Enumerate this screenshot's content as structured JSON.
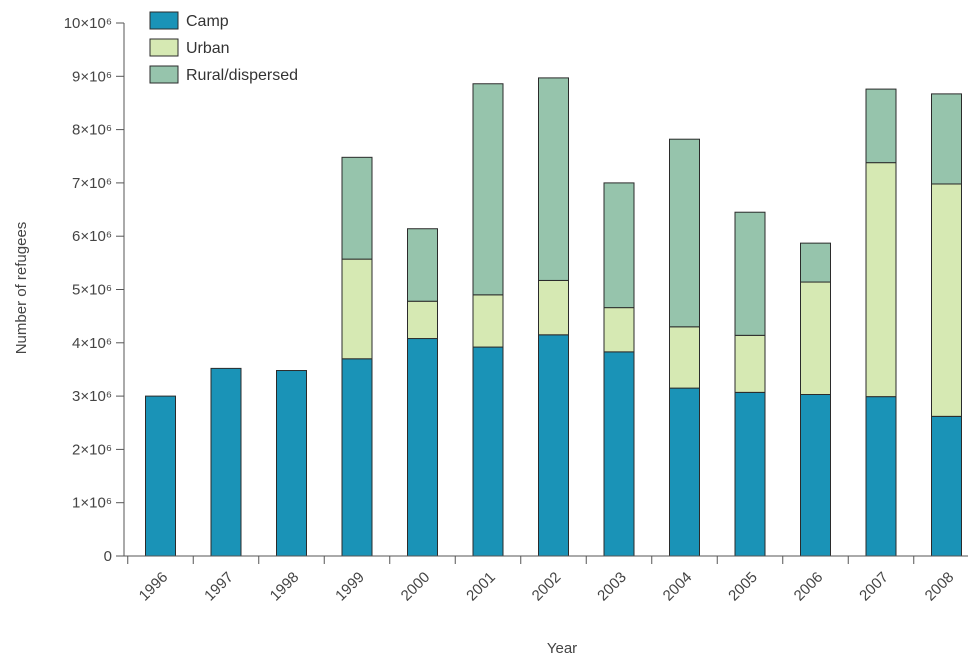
{
  "chart_data": {
    "type": "bar",
    "stacked": true,
    "title": "",
    "xlabel": "Year",
    "ylabel": "Number of refugees",
    "ylim": [
      0,
      10000000
    ],
    "y_tick_labels": [
      "0",
      "1×10⁶",
      "2×10⁶",
      "3×10⁶",
      "4×10⁶",
      "5×10⁶",
      "6×10⁶",
      "7×10⁶",
      "8×10⁶",
      "9×10⁶",
      "10×10⁶"
    ],
    "y_tick_values": [
      0,
      1000000,
      2000000,
      3000000,
      4000000,
      5000000,
      6000000,
      7000000,
      8000000,
      9000000,
      10000000
    ],
    "categories": [
      "1996",
      "1997",
      "1998",
      "1999",
      "2000",
      "2001",
      "2002",
      "2003",
      "2004",
      "2005",
      "2006",
      "2007",
      "2008"
    ],
    "legend_position": "top-left",
    "grid": false,
    "series": [
      {
        "name": "Camp",
        "color": "#1a93b7",
        "values": [
          3000000,
          3520000,
          3480000,
          3700000,
          4080000,
          3920000,
          4150000,
          3830000,
          3150000,
          3070000,
          3030000,
          2990000,
          2620000
        ]
      },
      {
        "name": "Urban",
        "color": "#d6e9b3",
        "values": [
          0,
          0,
          0,
          1870000,
          700000,
          980000,
          1020000,
          830000,
          1150000,
          1070000,
          2110000,
          4390000,
          4360000
        ]
      },
      {
        "name": "Rural/dispersed",
        "color": "#96c4ac",
        "values": [
          0,
          0,
          0,
          1910000,
          1360000,
          3960000,
          3800000,
          2340000,
          3520000,
          2310000,
          730000,
          1380000,
          1690000
        ]
      }
    ]
  }
}
